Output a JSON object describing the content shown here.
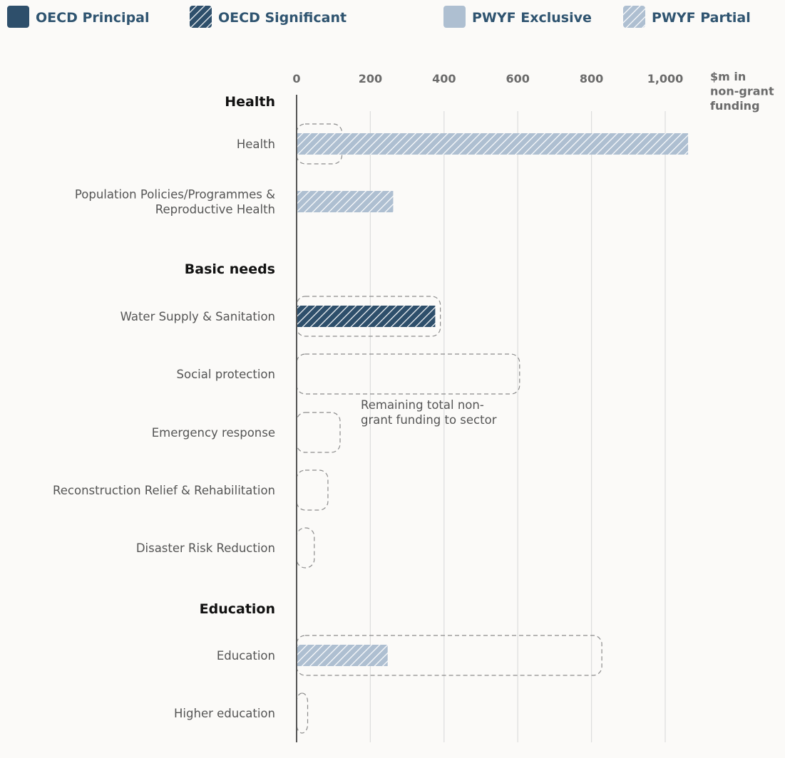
{
  "colors": {
    "oecd_principal": "#2e4f6b",
    "oecd_significant": "#2e4f6b",
    "pwyf_exclusive": "#aebfd1",
    "pwyf_partial": "#aebfd1",
    "grid": "#dddddd",
    "axis": "#555555",
    "outline": "#8c8c8c"
  },
  "chart_data": {
    "type": "bar",
    "orientation": "horizontal",
    "legend": [
      {
        "key": "oecd_principal",
        "label": "OECD Principal",
        "pattern": "solid"
      },
      {
        "key": "oecd_significant",
        "label": "OECD Significant",
        "pattern": "hatched"
      },
      {
        "key": "pwyf_exclusive",
        "label": "PWYF Exclusive",
        "pattern": "solid"
      },
      {
        "key": "pwyf_partial",
        "label": "PWYF Partial",
        "pattern": "hatched"
      }
    ],
    "legend_position": "top",
    "x_unit_label": [
      "$m in",
      "non-grant",
      "funding"
    ],
    "x_ticks": [
      0,
      200,
      400,
      600,
      800,
      1000
    ],
    "x_tick_labels": [
      "0",
      "200",
      "400",
      "600",
      "800",
      "1,000"
    ],
    "xlim": [
      0,
      1000
    ],
    "grid": true,
    "groups": [
      {
        "name": "Health",
        "rows": [
          {
            "label": [
              "Health"
            ],
            "value": 1062,
            "series": "pwyf_partial",
            "total_outline": 123
          },
          {
            "label": [
              "Population Policies/Programmes &",
              "Reproductive Health"
            ],
            "value": 262,
            "series": "pwyf_partial",
            "total_outline": null
          }
        ]
      },
      {
        "name": "Basic needs",
        "rows": [
          {
            "label": [
              "Water Supply & Sanitation"
            ],
            "value": 376,
            "series": "oecd_significant",
            "total_outline": 390
          },
          {
            "label": [
              "Social protection"
            ],
            "value": 0,
            "series": null,
            "total_outline": 605
          },
          {
            "label": [
              "Emergency response"
            ],
            "value": 0,
            "series": null,
            "total_outline": 118
          },
          {
            "label": [
              "Reconstruction Relief & Rehabilitation"
            ],
            "value": 0,
            "series": null,
            "total_outline": 85
          },
          {
            "label": [
              "Disaster Risk Reduction"
            ],
            "value": 0,
            "series": null,
            "total_outline": 48
          }
        ]
      },
      {
        "name": "Education",
        "rows": [
          {
            "label": [
              "Education"
            ],
            "value": 247,
            "series": "pwyf_partial",
            "total_outline": 828
          },
          {
            "label": [
              "Higher education"
            ],
            "value": 0,
            "series": null,
            "total_outline": 30
          }
        ]
      }
    ],
    "annotation": {
      "text": [
        "Remaining total non-",
        "grant funding to sector"
      ],
      "attached_to": "Social protection"
    }
  }
}
